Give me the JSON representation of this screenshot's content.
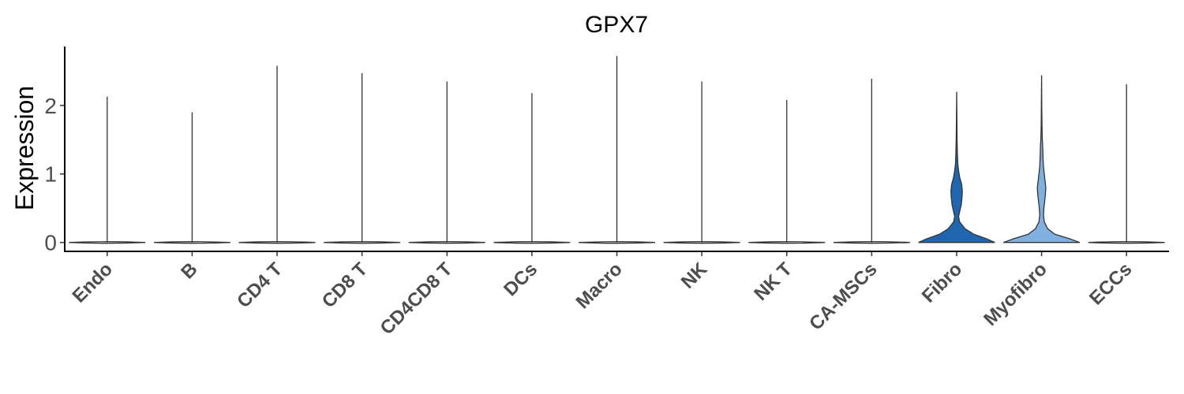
{
  "chart_data": {
    "type": "violin",
    "title": "GPX7",
    "xlabel": "",
    "ylabel": "Expression",
    "ylim": [
      -0.13,
      2.86
    ],
    "yticks": [
      0,
      1,
      2
    ],
    "grid": false,
    "legend": "none",
    "categories": [
      "Endo",
      "B",
      "CD4 T",
      "CD8 T",
      "CD4CD8 T",
      "DCs",
      "Macro",
      "NK",
      "NK T",
      "CA-MSCs",
      "Fibro",
      "Myofibro",
      "ECCs"
    ],
    "max_values": [
      2.13,
      1.9,
      2.58,
      2.47,
      2.35,
      2.18,
      2.72,
      2.35,
      2.08,
      2.39,
      2.2,
      2.44,
      2.31
    ],
    "fill_colors": [
      "#f7fbff",
      "#f7fbff",
      "#f7fbff",
      "#f7fbff",
      "#f7fbff",
      "#f7fbff",
      "#f7fbff",
      "#f7fbff",
      "#f7fbff",
      "#f7fbff",
      "#1f66b0",
      "#7fb0e0",
      "#f7fbff"
    ],
    "density_profiles": {
      "Fibro": [
        [
          0,
          1.0
        ],
        [
          0.05,
          0.8
        ],
        [
          0.12,
          0.45
        ],
        [
          0.2,
          0.22
        ],
        [
          0.3,
          0.08
        ],
        [
          0.38,
          0.05
        ],
        [
          0.45,
          0.08
        ],
        [
          0.55,
          0.12
        ],
        [
          0.65,
          0.14
        ],
        [
          0.75,
          0.15
        ],
        [
          0.85,
          0.13
        ],
        [
          0.95,
          0.08
        ],
        [
          1.05,
          0.05
        ],
        [
          1.15,
          0.03
        ],
        [
          1.3,
          0.02
        ],
        [
          1.5,
          0.012
        ],
        [
          1.8,
          0.006
        ],
        [
          2.2,
          0.0
        ]
      ],
      "Myofibro": [
        [
          0,
          1.0
        ],
        [
          0.05,
          0.75
        ],
        [
          0.12,
          0.35
        ],
        [
          0.2,
          0.16
        ],
        [
          0.3,
          0.07
        ],
        [
          0.4,
          0.05
        ],
        [
          0.5,
          0.06
        ],
        [
          0.6,
          0.08
        ],
        [
          0.7,
          0.1
        ],
        [
          0.8,
          0.11
        ],
        [
          0.9,
          0.09
        ],
        [
          1.0,
          0.07
        ],
        [
          1.1,
          0.05
        ],
        [
          1.2,
          0.04
        ],
        [
          1.3,
          0.035
        ],
        [
          1.4,
          0.03
        ],
        [
          1.5,
          0.02
        ],
        [
          1.7,
          0.01
        ],
        [
          2.0,
          0.005
        ],
        [
          2.44,
          0.0
        ]
      ]
    }
  }
}
